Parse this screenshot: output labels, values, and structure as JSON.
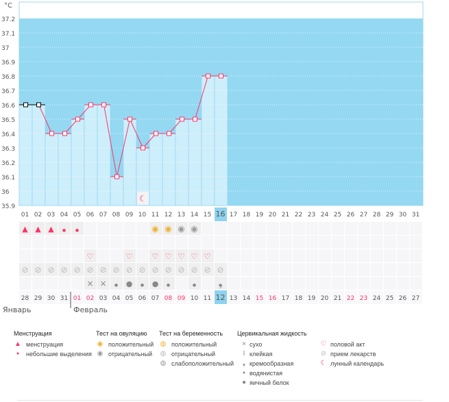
{
  "colors": {
    "plot_bg": "#94d8f2",
    "bar": "#cdeefb",
    "line": "#ff3366",
    "first_line": "#000000",
    "today": "#8fd3f0",
    "weekend": "#ff3366"
  },
  "chart_data": {
    "type": "line",
    "unit": "°C",
    "ylim": [
      35.9,
      37.2
    ],
    "yticks": [
      "35.9",
      "36",
      "36.1",
      "36.2",
      "36.3",
      "36.4",
      "36.5",
      "36.6",
      "36.7",
      "36.8",
      "36.9",
      "37",
      "37.1",
      "37.2"
    ],
    "cycle_days": [
      "01",
      "02",
      "03",
      "04",
      "05",
      "06",
      "07",
      "08",
      "09",
      "10",
      "11",
      "12",
      "13",
      "14",
      "15",
      "16",
      "17",
      "18",
      "19",
      "20",
      "21",
      "22",
      "23",
      "24",
      "25",
      "26",
      "27",
      "28",
      "29",
      "30",
      "31"
    ],
    "today_index": 15,
    "temperatures": [
      36.6,
      36.6,
      36.4,
      36.4,
      36.5,
      36.6,
      36.6,
      36.1,
      36.5,
      36.3,
      36.4,
      36.4,
      36.5,
      36.5,
      36.8,
      36.8
    ],
    "moon_day_index": 9
  },
  "rows": {
    "menstruation": [
      "menstruation",
      "menstruation",
      "menstruation",
      "spotting",
      "spotting",
      "",
      "",
      "",
      "",
      "",
      "ovulation-positive",
      "ovulation-positive",
      "ovulation-negative",
      "ovulation-negative",
      "",
      ""
    ],
    "pregnancy": [
      "",
      "",
      "",
      "",
      "",
      "",
      "",
      "",
      "",
      "",
      "",
      "",
      "",
      "",
      "",
      ""
    ],
    "intercourse": [
      "",
      "",
      "",
      "",
      "",
      "heart",
      "",
      "",
      "heart",
      "",
      "heart",
      "heart",
      "heart",
      "heart",
      "heart",
      ""
    ],
    "medication": [
      "pill",
      "pill",
      "pill",
      "pill",
      "pill",
      "pill",
      "pill",
      "pill",
      "pill",
      "pill",
      "pill",
      "pill",
      "pill",
      "pill",
      "pill",
      "pill"
    ],
    "cervical": [
      "",
      "",
      "",
      "",
      "",
      "dry",
      "dry",
      "watery",
      "eggwhite",
      "watery",
      "eggwhite",
      "watery",
      "",
      "watery",
      "",
      "creamy"
    ]
  },
  "dates": [
    "28",
    "29",
    "30",
    "31",
    "01",
    "02",
    "03",
    "04",
    "05",
    "06",
    "07",
    "08",
    "09",
    "10",
    "11",
    "12",
    "13",
    "14",
    "15",
    "16",
    "17",
    "18",
    "19",
    "20",
    "21",
    "22",
    "23",
    "24",
    "25",
    "26",
    "27"
  ],
  "weekend_indices": [
    4,
    5,
    11,
    12,
    18,
    19,
    25,
    26
  ],
  "today_date_index": 15,
  "months": {
    "jan": "Январь",
    "feb": "Февраль"
  },
  "legend": {
    "menstruation": {
      "title": "Менструация",
      "items": [
        "менструация",
        "небольшие выделения"
      ]
    },
    "ovulation": {
      "title": "Тест на овуляцию",
      "items": [
        "положительный",
        "отрицательный"
      ]
    },
    "pregnancy": {
      "title": "Тест на беременность",
      "items": [
        "положительный",
        "отрицательный",
        "слабоположительный"
      ]
    },
    "cervical": {
      "title": "Цервикальная жидкость",
      "items": [
        "сухо",
        "клейкая",
        "кремообразная",
        "водянистая",
        "яичный белок"
      ]
    },
    "other": {
      "items": [
        "половой акт",
        "прием лекарств",
        "лунный календарь"
      ]
    }
  }
}
